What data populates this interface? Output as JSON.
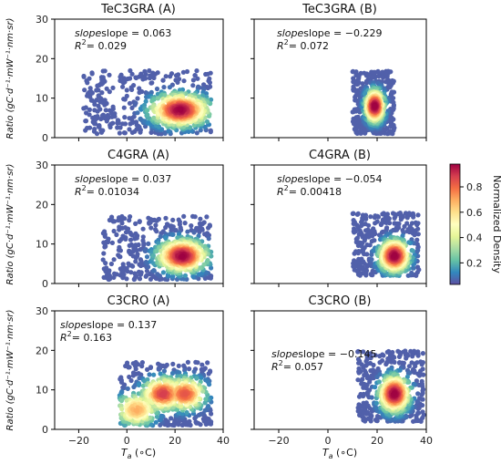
{
  "chart_data": {
    "type": "scatter",
    "description_kind": "density-colored scatter panels",
    "y_axis_label": "Ratio (gC·d⁻¹·mW⁻¹·nm·sr)",
    "x_axis_label_main": "T",
    "x_axis_label_sub": "a",
    "x_axis_label_unit": " (∘C)",
    "xlim": [
      -30,
      40
    ],
    "ylim": [
      0,
      30
    ],
    "x_ticks": [
      -20,
      0,
      20,
      40
    ],
    "y_ticks": [
      0,
      10,
      20,
      30
    ],
    "colorbar": {
      "label": "Normalized Density",
      "ticks": [
        "0.2",
        "0.4",
        "0.6",
        "0.8"
      ],
      "tick_values": [
        0.2,
        0.4,
        0.6,
        0.8
      ],
      "range": [
        0.03,
        0.98
      ],
      "colormap": "Spectral_r"
    },
    "panels": [
      {
        "title": "TeC3GRA (A)",
        "slope_label": "slope = 0.063",
        "r2_label": "= 0.029",
        "clusters": [
          {
            "x_range": [
              -18,
              35
            ],
            "y_range": [
              1,
              17
            ],
            "kind": "envelope"
          },
          {
            "x_center": 22,
            "y_center": 7,
            "peak": 1.0
          }
        ]
      },
      {
        "title": "TeC3GRA (B)",
        "slope_label": "slope = −0.229",
        "r2_label": "= 0.072",
        "clusters": [
          {
            "x_range": [
              10,
              27
            ],
            "y_range": [
              1,
              17
            ],
            "kind": "envelope"
          },
          {
            "x_center": 19,
            "y_center": 8,
            "peak": 1.0
          }
        ]
      },
      {
        "title": "C4GRA (A)",
        "slope_label": "slope = 0.037",
        "r2_label": "= 0.01034",
        "clusters": [
          {
            "x_range": [
              -10,
              35
            ],
            "y_range": [
              1,
              17
            ],
            "kind": "envelope"
          },
          {
            "x_center": 23,
            "y_center": 7,
            "peak": 1.0
          }
        ]
      },
      {
        "title": "C4GRA (B)",
        "slope_label": "slope = −0.054",
        "r2_label": "= 0.00418",
        "clusters": [
          {
            "x_range": [
              10,
              37
            ],
            "y_range": [
              2,
              18
            ],
            "kind": "envelope"
          },
          {
            "x_center": 27,
            "y_center": 7,
            "peak": 1.0
          }
        ]
      },
      {
        "title": "C3CRO (A)",
        "slope_label": "slope = 0.137",
        "r2_label": "= 0.163",
        "clusters": [
          {
            "x_range": [
              -3,
              35
            ],
            "y_range": [
              1,
              17
            ],
            "kind": "envelope"
          },
          {
            "x_center": 15,
            "y_center": 9,
            "peak": 0.9
          },
          {
            "x_center": 24,
            "y_center": 9,
            "peak": 0.85
          },
          {
            "x_center": 4,
            "y_center": 5,
            "peak": 0.7
          }
        ]
      },
      {
        "title": "C3CRO (B)",
        "slope_label": "slope = −0.145",
        "r2_label": "= 0.057",
        "clusters": [
          {
            "x_range": [
              12,
              39
            ],
            "y_range": [
              2,
              20
            ],
            "kind": "envelope"
          },
          {
            "x_center": 27,
            "y_center": 9,
            "peak": 1.0
          }
        ]
      }
    ]
  }
}
